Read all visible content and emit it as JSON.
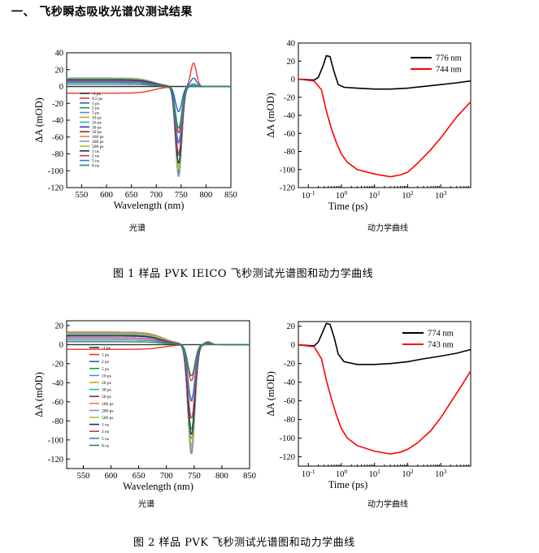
{
  "section_title": "一、 飞秒瞬态吸收光谱仪测试结果",
  "figures": [
    {
      "caption": "图 1      样品 PVK IEICO 飞秒测试光谱图和动力学曲线",
      "spectrum_label": "光谱",
      "kinetics_label": "动力学曲线"
    },
    {
      "caption": "图 2      样品 PVK 飞秒测试光谱图和动力学曲线",
      "spectrum_label": "光谱",
      "kinetics_label": "动力学曲线"
    }
  ],
  "chart_data": [
    {
      "type": "line",
      "xlabel": "Wavelength (nm)",
      "ylabel": "ΔA (mOD)",
      "xlim": [
        520,
        850
      ],
      "ylim": [
        -120,
        40
      ],
      "xticks": [
        550,
        600,
        650,
        700,
        750,
        800,
        850
      ],
      "yticks": [
        40,
        20,
        0,
        -20,
        -40,
        -60,
        -80,
        -100,
        -120
      ],
      "legend_position": "left-center",
      "series": [
        {
          "name": "-1 ps",
          "color": "#333333",
          "plateau": 0,
          "dip": 0,
          "peak": 0
        },
        {
          "name": "0.5 ps",
          "color": "#e8382f",
          "plateau": -8,
          "dip": -55,
          "peak": 28
        },
        {
          "name": "1 ps",
          "color": "#2f5fd6",
          "plateau": 3,
          "dip": -30,
          "peak": 10
        },
        {
          "name": "2 ps",
          "color": "#17a34a",
          "plateau": 6,
          "dip": -83,
          "peak": 3
        },
        {
          "name": "5 ps",
          "color": "#4b8fe0",
          "plateau": 7,
          "dip": -68,
          "peak": 2
        },
        {
          "name": "10 ps",
          "color": "#d2a21f",
          "plateau": 8,
          "dip": -96,
          "peak": 1
        },
        {
          "name": "20 ps",
          "color": "#1fb9b9",
          "plateau": 9,
          "dip": -100,
          "peak": 1
        },
        {
          "name": "30 ps",
          "color": "#2f3aa8",
          "plateau": 9,
          "dip": -103,
          "peak": 0
        },
        {
          "name": "50 ps",
          "color": "#7f2f2f",
          "plateau": 9,
          "dip": -106,
          "peak": 0
        },
        {
          "name": "100 ps",
          "color": "#f08030",
          "plateau": 10,
          "dip": -108,
          "peak": 0
        },
        {
          "name": "200 ps",
          "color": "#7a9ad8",
          "plateau": 10,
          "dip": -107,
          "peak": 0
        },
        {
          "name": "500 ps",
          "color": "#a5c81e",
          "plateau": 9,
          "dip": -100,
          "peak": 0
        },
        {
          "name": "1 ns",
          "color": "#1e2e6e",
          "plateau": 8,
          "dip": -92,
          "peak": 0
        },
        {
          "name": "2 ns",
          "color": "#c03a5a",
          "plateau": 6,
          "dip": -80,
          "peak": 0
        },
        {
          "name": "5 ns",
          "color": "#2e7fd6",
          "plateau": 5,
          "dip": -66,
          "peak": 0
        },
        {
          "name": "8 ns",
          "color": "#2a8a55",
          "plateau": 3,
          "dip": -50,
          "peak": 0
        }
      ]
    },
    {
      "type": "line",
      "xlabel": "Time  (ps)",
      "ylabel": "ΔA (mOD)",
      "xscale": "log",
      "xlim": [
        0.05,
        8000
      ],
      "ylim": [
        -120,
        40
      ],
      "xticks": [
        "10-1",
        "100",
        "101",
        "102",
        "103"
      ],
      "yticks": [
        40,
        20,
        0,
        -20,
        -40,
        -60,
        -80,
        -100,
        -120
      ],
      "legend_position": "top-right",
      "series": [
        {
          "name": "776 nm",
          "color": "#000000",
          "points": [
            [
              0.05,
              0
            ],
            [
              0.15,
              -1
            ],
            [
              0.2,
              2
            ],
            [
              0.28,
              15
            ],
            [
              0.35,
              26
            ],
            [
              0.45,
              25
            ],
            [
              0.6,
              8
            ],
            [
              0.8,
              -6
            ],
            [
              1.2,
              -9
            ],
            [
              3,
              -10
            ],
            [
              10,
              -11
            ],
            [
              30,
              -11
            ],
            [
              100,
              -10
            ],
            [
              300,
              -8
            ],
            [
              1000,
              -6
            ],
            [
              3000,
              -4
            ],
            [
              8000,
              -2
            ]
          ]
        },
        {
          "name": "744 nm",
          "color": "#ff0000",
          "points": [
            [
              0.05,
              0
            ],
            [
              0.15,
              -2
            ],
            [
              0.25,
              -12
            ],
            [
              0.35,
              -35
            ],
            [
              0.5,
              -55
            ],
            [
              0.7,
              -70
            ],
            [
              1,
              -83
            ],
            [
              1.5,
              -92
            ],
            [
              3,
              -100
            ],
            [
              10,
              -105
            ],
            [
              30,
              -108
            ],
            [
              60,
              -106
            ],
            [
              100,
              -103
            ],
            [
              200,
              -93
            ],
            [
              500,
              -78
            ],
            [
              1000,
              -65
            ],
            [
              3000,
              -42
            ],
            [
              8000,
              -25
            ]
          ]
        }
      ]
    },
    {
      "type": "line",
      "xlabel": "Wavelength (nm)",
      "ylabel": "ΔA (mOD)",
      "xlim": [
        520,
        850
      ],
      "ylim": [
        -130,
        25
      ],
      "xticks": [
        550,
        600,
        650,
        700,
        750,
        800,
        850
      ],
      "yticks": [
        20,
        0,
        -20,
        -40,
        -60,
        -80,
        -100,
        -120
      ],
      "legend_position": "center",
      "series": [
        {
          "name": "-1 ps",
          "color": "#333333",
          "plateau": 0,
          "dip": 0,
          "peak": 0
        },
        {
          "name": "1 ps",
          "color": "#e8382f",
          "plateau": -5,
          "dip": -38,
          "peak": 3
        },
        {
          "name": "2 ps",
          "color": "#2f5fd6",
          "plateau": 10,
          "dip": -60,
          "peak": 2
        },
        {
          "name": "5 ps",
          "color": "#17a34a",
          "plateau": 11,
          "dip": -90,
          "peak": 1
        },
        {
          "name": "10 ps",
          "color": "#4b8fe0",
          "plateau": 12,
          "dip": -100,
          "peak": 0
        },
        {
          "name": "20 ps",
          "color": "#d2a21f",
          "plateau": 13,
          "dip": -108,
          "peak": 0
        },
        {
          "name": "30 ps",
          "color": "#1fb9b9",
          "plateau": 13,
          "dip": -112,
          "peak": 0
        },
        {
          "name": "50 ps",
          "color": "#7f2f2f",
          "plateau": 13,
          "dip": -115,
          "peak": 0
        },
        {
          "name": "100 ps",
          "color": "#f08030",
          "plateau": 13,
          "dip": -116,
          "peak": 0
        },
        {
          "name": "200 ps",
          "color": "#7a9ad8",
          "plateau": 12,
          "dip": -113,
          "peak": 0
        },
        {
          "name": "500 ps",
          "color": "#a5c81e",
          "plateau": 11,
          "dip": -106,
          "peak": 0
        },
        {
          "name": "1 ns",
          "color": "#1e2e6e",
          "plateau": 9,
          "dip": -95,
          "peak": 0
        },
        {
          "name": "2 ns",
          "color": "#c03a5a",
          "plateau": 7,
          "dip": -78,
          "peak": 0
        },
        {
          "name": "5 ns",
          "color": "#2e7fd6",
          "plateau": 5,
          "dip": -58,
          "peak": 0
        },
        {
          "name": "8 ns",
          "color": "#2a8a55",
          "plateau": 3,
          "dip": -33,
          "peak": 0
        }
      ]
    },
    {
      "type": "line",
      "xlabel": "Time  (ps)",
      "ylabel": "ΔA (mOD)",
      "xscale": "log",
      "xlim": [
        0.05,
        8000
      ],
      "ylim": [
        -130,
        25
      ],
      "xticks": [
        "10-1",
        "100",
        "101",
        "102",
        "103"
      ],
      "yticks": [
        20,
        0,
        -20,
        -40,
        -60,
        -80,
        -100,
        -120
      ],
      "legend_position": "top-right",
      "series": [
        {
          "name": "774 nm",
          "color": "#000000",
          "points": [
            [
              0.05,
              0
            ],
            [
              0.15,
              -1
            ],
            [
              0.2,
              3
            ],
            [
              0.28,
              15
            ],
            [
              0.35,
              23
            ],
            [
              0.45,
              22
            ],
            [
              0.6,
              8
            ],
            [
              0.8,
              -10
            ],
            [
              1.2,
              -18
            ],
            [
              3,
              -21
            ],
            [
              10,
              -21
            ],
            [
              30,
              -20
            ],
            [
              100,
              -18
            ],
            [
              300,
              -15
            ],
            [
              1000,
              -12
            ],
            [
              3000,
              -9
            ],
            [
              8000,
              -5
            ]
          ]
        },
        {
          "name": "743 nm",
          "color": "#ff0000",
          "points": [
            [
              0.05,
              0
            ],
            [
              0.15,
              -2
            ],
            [
              0.25,
              -15
            ],
            [
              0.35,
              -38
            ],
            [
              0.5,
              -58
            ],
            [
              0.7,
              -75
            ],
            [
              1,
              -90
            ],
            [
              1.5,
              -100
            ],
            [
              3,
              -108
            ],
            [
              10,
              -114
            ],
            [
              30,
              -117
            ],
            [
              60,
              -115
            ],
            [
              100,
              -112
            ],
            [
              200,
              -105
            ],
            [
              500,
              -92
            ],
            [
              1000,
              -78
            ],
            [
              3000,
              -52
            ],
            [
              8000,
              -28
            ]
          ]
        }
      ]
    }
  ]
}
